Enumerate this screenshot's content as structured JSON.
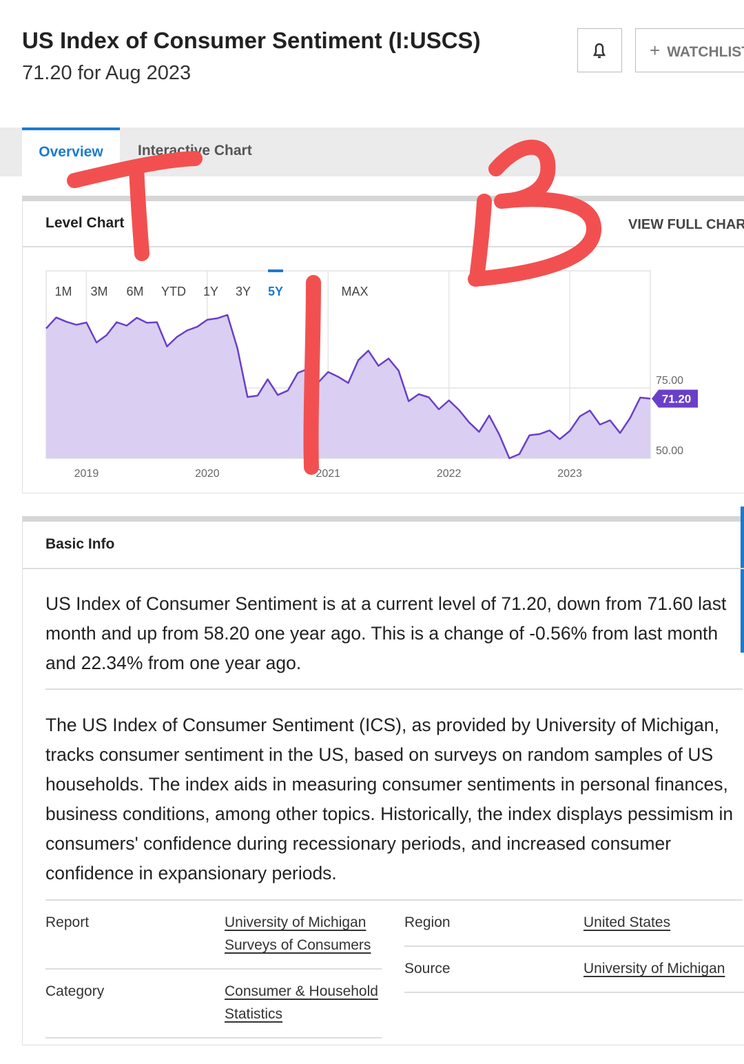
{
  "header": {
    "title": "US Index of Consumer Sentiment (I:USCS)",
    "subtitle": "71.20 for Aug 2023",
    "watchlist": "WATCHLIST"
  },
  "tabs": [
    "Overview",
    "Interactive Chart"
  ],
  "level_chart": {
    "title": "Level Chart",
    "link": "VIEW FULL CHART",
    "ranges": [
      "1M",
      "3M",
      "6M",
      "YTD",
      "1Y",
      "3Y",
      "5Y",
      "MAX"
    ],
    "current_label": "71.20"
  },
  "chart_data": {
    "type": "area",
    "color": "#6a3fc8",
    "fill": "#d8ccf1",
    "categories": [
      null,
      null,
      null,
      null,
      "2019",
      null,
      null,
      null,
      null,
      null,
      null,
      null,
      null,
      null,
      null,
      null,
      "2020",
      null,
      null,
      null,
      null,
      null,
      null,
      null,
      null,
      null,
      null,
      null,
      "2021",
      null,
      null,
      null,
      null,
      null,
      null,
      null,
      null,
      null,
      null,
      null,
      "2022",
      null,
      null,
      null,
      null,
      null,
      null,
      null,
      null,
      null,
      null,
      null,
      "2023",
      null,
      null,
      null,
      null,
      null,
      null,
      null,
      null
    ],
    "values": [
      96.2,
      100.1,
      98.6,
      97.5,
      98.3,
      91.2,
      93.8,
      98.4,
      97.2,
      100.0,
      98.2,
      98.4,
      89.8,
      93.2,
      95.5,
      96.8,
      99.3,
      99.8,
      101.0,
      89.1,
      71.8,
      72.3,
      78.1,
      72.5,
      74.1,
      80.4,
      81.8,
      76.9,
      80.7,
      79.0,
      76.8,
      84.9,
      88.3,
      82.9,
      85.5,
      81.2,
      70.3,
      72.8,
      71.7,
      67.4,
      70.6,
      67.2,
      62.8,
      59.4,
      65.2,
      58.4,
      50.0,
      51.5,
      58.2,
      58.6,
      59.9,
      56.8,
      59.7,
      64.9,
      67.0,
      62.0,
      63.5,
      59.0,
      64.4,
      71.6,
      71.2
    ],
    "ylim": [
      50,
      116.7
    ],
    "yticks": [
      {
        "value": 50,
        "label": "50.00"
      },
      {
        "value": 75,
        "label": "75.00"
      }
    ],
    "grid": true
  },
  "basic_info": {
    "title": "Basic Info",
    "paragraphs": [
      "US Index of Consumer Sentiment is at a current level of 71.20, down from 71.60 last month and up from 58.20 one year ago. This is a change of -0.56% from last month and 22.34% from one year ago.",
      "The US Index of Consumer Sentiment (ICS), as provided by University of Michigan, tracks consumer sentiment in the US, based on surveys on random samples of US households. The index aids in measuring consumer sentiments in personal finances, business conditions, among other topics. Historically, the index displays pessimism in consumers' confidence during recessionary periods, and increased consumer confidence in expansionary periods."
    ],
    "table": [
      {
        "label": "Report",
        "value": "University of Michigan Surveys of Consumers"
      },
      {
        "label": "Category",
        "value": "Consumer & Household Statistics"
      },
      {
        "label": "Region",
        "value": "United States"
      },
      {
        "label": "Source",
        "value": "University of Michigan"
      }
    ]
  }
}
